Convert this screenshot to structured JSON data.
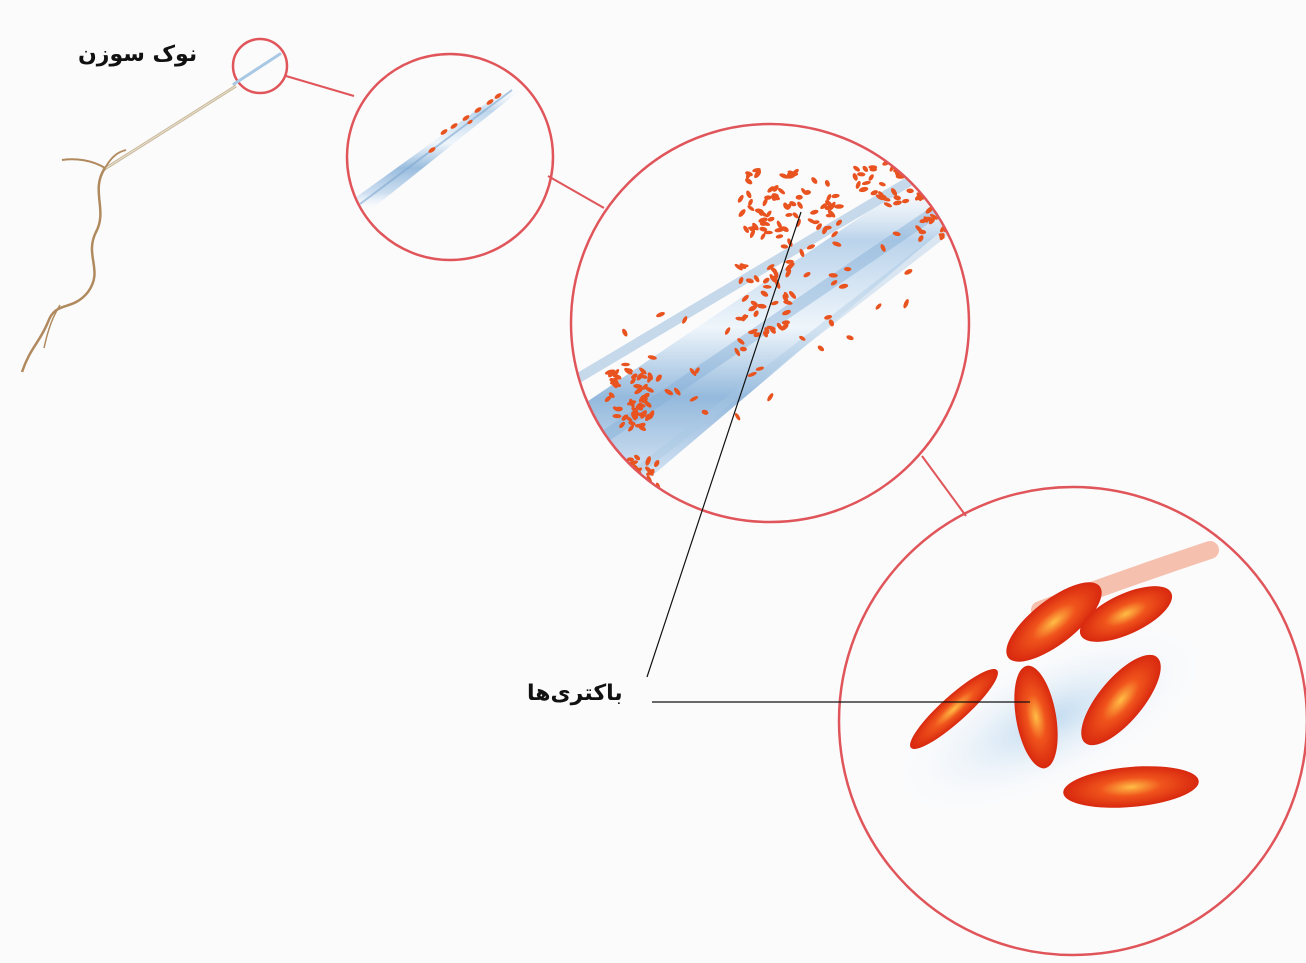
{
  "labels": {
    "needle_tip": "نوک سوزن",
    "bacteria": "باکتری‌ها"
  },
  "colors": {
    "circle_stroke": "#e0555a",
    "bacteria_fill": "#e63b17",
    "bacteria_highlight": "#ffb13d",
    "needle_blue": "#9cc0df",
    "stem_brown": "#b08a5e",
    "leader_line": "#111111"
  }
}
